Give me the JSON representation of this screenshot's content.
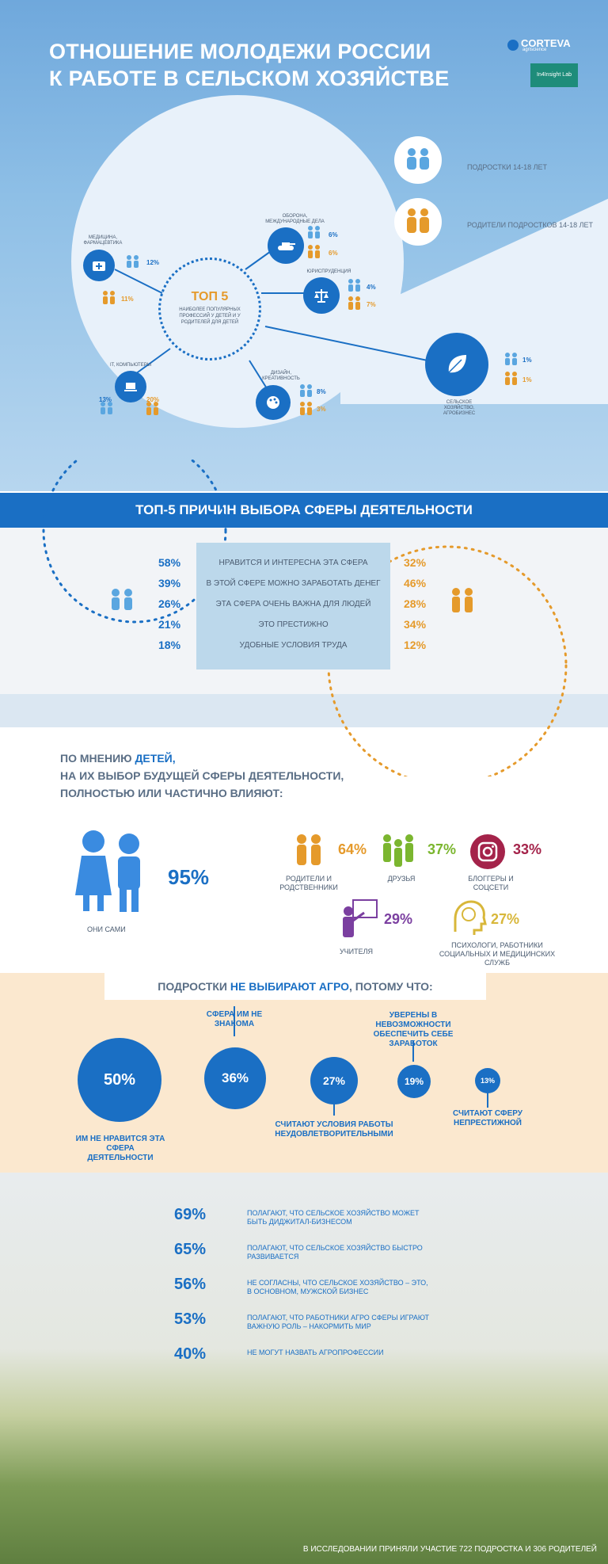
{
  "title": {
    "line1": "ОТНОШЕНИЕ МОЛОДЕЖИ РОССИИ",
    "line2": "К РАБОТЕ В СЕЛЬСКОМ ХОЗЯЙСТВЕ"
  },
  "logos": {
    "corteva": "CORTEVA",
    "corteva_sub": "agriscience",
    "insight": "In4Insight Lab"
  },
  "legend": {
    "teens": "ПОДРОСТКИ 14-18 ЛЕТ",
    "parents": "РОДИТЕЛИ ПОДРОСТКОВ 14-18 ЛЕТ"
  },
  "top5": {
    "title": "ТОП 5",
    "subtitle": "НАИБОЛЕЕ ПОПУЛЯРНЫХ ПРОФЕССИЙ У ДЕТЕЙ И У РОДИТЕЛЕЙ ДЛЯ ДЕТЕЙ",
    "nodes": [
      {
        "label": "МЕДИЦИНА, ФАРМАЦЕВТИКА",
        "teens": "12%",
        "parents": "11%"
      },
      {
        "label": "ОБОРОНА, МЕЖДУНАРОДНЫЕ ДЕЛА",
        "teens": "6%",
        "parents": "6%"
      },
      {
        "label": "ЮРИСПРУДЕНЦИЯ",
        "teens": "4%",
        "parents": "7%"
      },
      {
        "label": "IT, КОМПЬЮТЕРЫ",
        "teens": "13%",
        "parents": "20%"
      },
      {
        "label": "ДИЗАЙН, КРЕАТИВНОСТЬ",
        "teens": "8%",
        "parents": "3%"
      },
      {
        "label": "СЕЛЬСКОЕ ХОЗЯЙСТВО, АГРОБИЗНЕС",
        "teens": "1%",
        "parents": "1%"
      }
    ]
  },
  "reasons": {
    "heading": "ТОП-5 ПРИЧИН ВЫБОРА СФЕРЫ ДЕЯТЕЛЬНОСТИ",
    "rows": [
      {
        "text": "НРАВИТСЯ И ИНТЕРЕСНА ЭТА СФЕРА",
        "teens": "58%",
        "parents": "32%"
      },
      {
        "text": "В ЭТОЙ СФЕРЕ МОЖНО ЗАРАБОТАТЬ ДЕНЕГ",
        "teens": "39%",
        "parents": "46%"
      },
      {
        "text": "ЭТА СФЕРА ОЧЕНЬ ВАЖНА ДЛЯ ЛЮДЕЙ",
        "teens": "26%",
        "parents": "28%"
      },
      {
        "text": "ЭТО ПРЕСТИЖНО",
        "teens": "21%",
        "parents": "34%"
      },
      {
        "text": "УДОБНЫЕ УСЛОВИЯ ТРУДА",
        "teens": "18%",
        "parents": "12%"
      }
    ]
  },
  "influence": {
    "line1a": "ПО МНЕНИЮ ",
    "line1b": "ДЕТЕЙ,",
    "line2": "НА ИХ ВЫБОР БУДУЩЕЙ СФЕРЫ ДЕЯТЕЛЬНОСТИ,",
    "line3": "ПОЛНОСТЬЮ ИЛИ ЧАСТИЧНО ВЛИЯЮТ:",
    "self": {
      "value": "95%",
      "label": "ОНИ САМИ"
    },
    "items": [
      {
        "label": "РОДИТЕЛИ И РОДСТВЕННИКИ",
        "value": "64%",
        "color": "#e59a2b"
      },
      {
        "label": "ДРУЗЬЯ",
        "value": "37%",
        "color": "#7bb62f"
      },
      {
        "label": "БЛОГГЕРЫ И СОЦСЕТИ",
        "value": "33%",
        "color": "#a4234a"
      },
      {
        "label": "УЧИТЕЛЯ",
        "value": "29%",
        "color": "#7b3fa0"
      },
      {
        "label": "ПСИХОЛОГИ, РАБОТНИКИ СОЦИАЛЬНЫХ И МЕДИЦИНСКИХ СЛУЖБ",
        "value": "27%",
        "color": "#d8b73a"
      }
    ]
  },
  "noagro": {
    "h_a": "ПОДРОСТКИ ",
    "h_b": "НЕ ВЫБИРАЮТ АГРО",
    "h_c": ", ПОТОМУ ЧТО:",
    "bubbles": [
      {
        "value": "50%",
        "label": "ИМ НЕ НРАВИТСЯ ЭТА СФЕРА ДЕЯТЕЛЬНОСТИ"
      },
      {
        "value": "36%",
        "label": "СФЕРА ИМ НЕ ЗНАКОМА"
      },
      {
        "value": "27%",
        "label": "СЧИТАЮТ УСЛОВИЯ РАБОТЫ НЕУДОВЛЕТВОРИТЕЛЬНЫМИ"
      },
      {
        "value": "19%",
        "label": "УВЕРЕНЫ В НЕВОЗМОЖНОСТИ ОБЕСПЕЧИТЬ СЕБЕ ЗАРАБОТОК"
      },
      {
        "value": "13%",
        "label": "СЧИТАЮТ СФЕРУ НЕПРЕСТИЖНОЙ"
      }
    ]
  },
  "stats": [
    {
      "value": "69%",
      "text": "ПОЛАГАЮТ, ЧТО СЕЛЬСКОЕ ХОЗЯЙСТВО МОЖЕТ БЫТЬ ДИДЖИТАЛ-БИЗНЕСОМ"
    },
    {
      "value": "65%",
      "text": "ПОЛАГАЮТ, ЧТО СЕЛЬСКОЕ ХОЗЯЙСТВО БЫСТРО РАЗВИВАЕТСЯ"
    },
    {
      "value": "56%",
      "text": "НЕ СОГЛАСНЫ, ЧТО СЕЛЬСКОЕ ХОЗЯЙСТВО – ЭТО, В ОСНОВНОМ, МУЖСКОЙ БИЗНЕС"
    },
    {
      "value": "53%",
      "text": "ПОЛАГАЮТ, ЧТО РАБОТНИКИ АГРО СФЕРЫ ИГРАЮТ ВАЖНУЮ РОЛЬ – НАКОРМИТЬ МИР"
    },
    {
      "value": "40%",
      "text": "НЕ МОГУТ НАЗВАТЬ АГРОПРОФЕССИИ"
    }
  ],
  "footer": "В ИССЛЕДОВАНИИ ПРИНЯЛИ УЧАСТИЕ 722 ПОДРОСТКА И 306 РОДИТЕЛЕЙ",
  "colors": {
    "blue": "#1a6fc4",
    "orange": "#e59a2b",
    "teal": "#1e8c7a"
  }
}
